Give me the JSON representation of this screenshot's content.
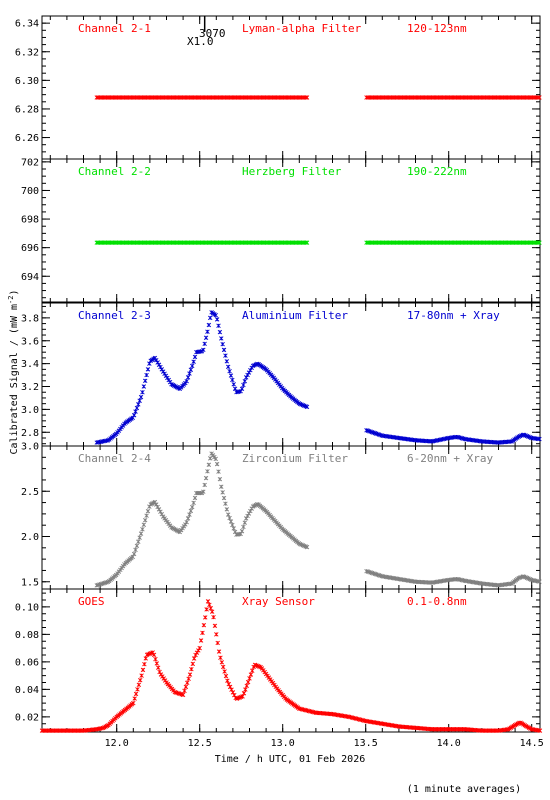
{
  "figure": {
    "ylabel": "Calibrated Signal / (mW m",
    "ylabel_sup": "-2",
    "ylabel_close": ")",
    "xlabel": "Time / h UTC, 01 Feb 2026",
    "footnote": "(1 minute averages)",
    "marker_label_1": "3070",
    "marker_label_2": "X1.0",
    "marker_time": 12.53,
    "xlim": [
      11.55,
      14.55
    ],
    "xticks": [
      "12.0",
      "12.5",
      "13.0",
      "13.5",
      "14.0",
      "14.5"
    ],
    "xtick_values": [
      12.0,
      12.5,
      13.0,
      13.5,
      14.0,
      14.5
    ],
    "data_gap": [
      13.15,
      13.5
    ]
  },
  "chart_data": [
    {
      "type": "scatter",
      "channel": "Channel 2-1",
      "filter": "Lyman-alpha Filter",
      "band": "120-123nm",
      "color": "#ff0000",
      "ylim": [
        6.245,
        6.345
      ],
      "yticks": [
        "6.26",
        "6.28",
        "6.30",
        "6.32",
        "6.34"
      ],
      "ytick_values": [
        6.26,
        6.28,
        6.3,
        6.32,
        6.34
      ],
      "x_start": 11.88,
      "x_end": 14.55,
      "gap": [
        13.15,
        13.5
      ],
      "profile": {
        "kind": "flat",
        "level": 6.288
      }
    },
    {
      "type": "scatter",
      "channel": "Channel 2-2",
      "filter": "Herzberg Filter",
      "band": "190-222nm",
      "color": "#00e000",
      "ylim": [
        692.2,
        702.2
      ],
      "yticks": [
        "694",
        "696",
        "698",
        "700",
        "702"
      ],
      "ytick_values": [
        694,
        696,
        698,
        700,
        702
      ],
      "x_start": 11.88,
      "x_end": 14.55,
      "gap": [
        13.15,
        13.5
      ],
      "profile": {
        "kind": "flat",
        "level": 696.35
      }
    },
    {
      "type": "scatter",
      "channel": "Channel 2-3",
      "filter": "Aluminium Filter",
      "band": "17-80nm + Xray",
      "color": "#0000d0",
      "ylim": [
        2.68,
        3.93
      ],
      "yticks": [
        "2.8",
        "3.0",
        "3.2",
        "3.4",
        "3.6",
        "3.8"
      ],
      "ytick_values": [
        2.8,
        3.0,
        3.2,
        3.4,
        3.6,
        3.8
      ],
      "x_start": 11.88,
      "x_end": 14.55,
      "gap": [
        13.15,
        13.5
      ],
      "profile": {
        "kind": "curve",
        "points": [
          [
            11.88,
            2.71
          ],
          [
            11.95,
            2.73
          ],
          [
            12.0,
            2.79
          ],
          [
            12.05,
            2.88
          ],
          [
            12.1,
            2.93
          ],
          [
            12.15,
            3.12
          ],
          [
            12.2,
            3.42
          ],
          [
            12.23,
            3.45
          ],
          [
            12.28,
            3.33
          ],
          [
            12.33,
            3.22
          ],
          [
            12.38,
            3.18
          ],
          [
            12.42,
            3.24
          ],
          [
            12.46,
            3.4
          ],
          [
            12.48,
            3.5
          ],
          [
            12.52,
            3.51
          ],
          [
            12.55,
            3.7
          ],
          [
            12.57,
            3.85
          ],
          [
            12.6,
            3.82
          ],
          [
            12.63,
            3.62
          ],
          [
            12.67,
            3.38
          ],
          [
            12.72,
            3.15
          ],
          [
            12.75,
            3.16
          ],
          [
            12.78,
            3.28
          ],
          [
            12.82,
            3.38
          ],
          [
            12.85,
            3.4
          ],
          [
            12.9,
            3.35
          ],
          [
            12.95,
            3.27
          ],
          [
            13.0,
            3.18
          ],
          [
            13.05,
            3.11
          ],
          [
            13.1,
            3.05
          ],
          [
            13.15,
            3.02
          ],
          [
            13.5,
            2.82
          ],
          [
            13.6,
            2.77
          ],
          [
            13.7,
            2.75
          ],
          [
            13.8,
            2.73
          ],
          [
            13.9,
            2.72
          ],
          [
            14.0,
            2.75
          ],
          [
            14.05,
            2.76
          ],
          [
            14.1,
            2.74
          ],
          [
            14.2,
            2.72
          ],
          [
            14.3,
            2.71
          ],
          [
            14.38,
            2.72
          ],
          [
            14.42,
            2.76
          ],
          [
            14.45,
            2.78
          ],
          [
            14.5,
            2.75
          ],
          [
            14.55,
            2.74
          ]
        ]
      }
    },
    {
      "type": "scatter",
      "channel": "Channel 2-4",
      "filter": "Zirconium Filter",
      "band": "6-20nm + Xray",
      "color": "#808080",
      "ylim": [
        1.42,
        3.0
      ],
      "yticks": [
        "1.5",
        "2.0",
        "2.5",
        "3.0"
      ],
      "ytick_values": [
        1.5,
        2.0,
        2.5,
        3.0
      ],
      "x_start": 11.88,
      "x_end": 14.55,
      "gap": [
        13.15,
        13.5
      ],
      "profile": {
        "kind": "curve",
        "points": [
          [
            11.88,
            1.46
          ],
          [
            11.95,
            1.5
          ],
          [
            12.0,
            1.58
          ],
          [
            12.05,
            1.7
          ],
          [
            12.1,
            1.78
          ],
          [
            12.15,
            2.05
          ],
          [
            12.2,
            2.35
          ],
          [
            12.23,
            2.38
          ],
          [
            12.28,
            2.22
          ],
          [
            12.33,
            2.1
          ],
          [
            12.38,
            2.05
          ],
          [
            12.42,
            2.15
          ],
          [
            12.46,
            2.35
          ],
          [
            12.48,
            2.48
          ],
          [
            12.52,
            2.48
          ],
          [
            12.55,
            2.75
          ],
          [
            12.57,
            2.92
          ],
          [
            12.6,
            2.85
          ],
          [
            12.63,
            2.55
          ],
          [
            12.67,
            2.25
          ],
          [
            12.72,
            2.02
          ],
          [
            12.75,
            2.03
          ],
          [
            12.78,
            2.2
          ],
          [
            12.82,
            2.33
          ],
          [
            12.85,
            2.36
          ],
          [
            12.9,
            2.28
          ],
          [
            12.95,
            2.18
          ],
          [
            13.0,
            2.08
          ],
          [
            13.05,
            2.0
          ],
          [
            13.1,
            1.92
          ],
          [
            13.15,
            1.88
          ],
          [
            13.5,
            1.62
          ],
          [
            13.6,
            1.56
          ],
          [
            13.7,
            1.53
          ],
          [
            13.8,
            1.5
          ],
          [
            13.9,
            1.49
          ],
          [
            14.0,
            1.52
          ],
          [
            14.05,
            1.53
          ],
          [
            14.1,
            1.51
          ],
          [
            14.2,
            1.48
          ],
          [
            14.3,
            1.46
          ],
          [
            14.38,
            1.48
          ],
          [
            14.42,
            1.54
          ],
          [
            14.45,
            1.56
          ],
          [
            14.5,
            1.52
          ],
          [
            14.55,
            1.5
          ]
        ]
      }
    },
    {
      "type": "scatter",
      "channel": "GOES",
      "filter": "Xray Sensor",
      "band": "0.1-0.8nm",
      "color": "#ff0000",
      "ylim": [
        0.009,
        0.113
      ],
      "yticks": [
        "0.02",
        "0.04",
        "0.06",
        "0.08",
        "0.10"
      ],
      "ytick_values": [
        0.02,
        0.04,
        0.06,
        0.08,
        0.1
      ],
      "x_start": 11.55,
      "x_end": 14.55,
      "gap": null,
      "profile": {
        "kind": "curve",
        "points": [
          [
            11.55,
            0.01
          ],
          [
            11.7,
            0.01
          ],
          [
            11.8,
            0.01
          ],
          [
            11.88,
            0.011
          ],
          [
            11.92,
            0.012
          ],
          [
            11.95,
            0.014
          ],
          [
            12.0,
            0.02
          ],
          [
            12.05,
            0.025
          ],
          [
            12.1,
            0.03
          ],
          [
            12.15,
            0.05
          ],
          [
            12.18,
            0.065
          ],
          [
            12.22,
            0.067
          ],
          [
            12.26,
            0.052
          ],
          [
            12.3,
            0.045
          ],
          [
            12.35,
            0.038
          ],
          [
            12.4,
            0.036
          ],
          [
            12.44,
            0.05
          ],
          [
            12.47,
            0.064
          ],
          [
            12.5,
            0.07
          ],
          [
            12.53,
            0.09
          ],
          [
            12.55,
            0.104
          ],
          [
            12.58,
            0.095
          ],
          [
            12.62,
            0.065
          ],
          [
            12.67,
            0.045
          ],
          [
            12.72,
            0.033
          ],
          [
            12.76,
            0.035
          ],
          [
            12.8,
            0.048
          ],
          [
            12.83,
            0.058
          ],
          [
            12.87,
            0.056
          ],
          [
            12.92,
            0.048
          ],
          [
            12.97,
            0.04
          ],
          [
            13.02,
            0.033
          ],
          [
            13.1,
            0.026
          ],
          [
            13.2,
            0.023
          ],
          [
            13.3,
            0.022
          ],
          [
            13.4,
            0.02
          ],
          [
            13.5,
            0.017
          ],
          [
            13.6,
            0.015
          ],
          [
            13.7,
            0.013
          ],
          [
            13.8,
            0.012
          ],
          [
            13.9,
            0.011
          ],
          [
            14.0,
            0.011
          ],
          [
            14.1,
            0.011
          ],
          [
            14.2,
            0.01
          ],
          [
            14.3,
            0.01
          ],
          [
            14.36,
            0.011
          ],
          [
            14.4,
            0.014
          ],
          [
            14.43,
            0.016
          ],
          [
            14.47,
            0.013
          ],
          [
            14.5,
            0.011
          ],
          [
            14.55,
            0.01
          ]
        ]
      }
    }
  ]
}
